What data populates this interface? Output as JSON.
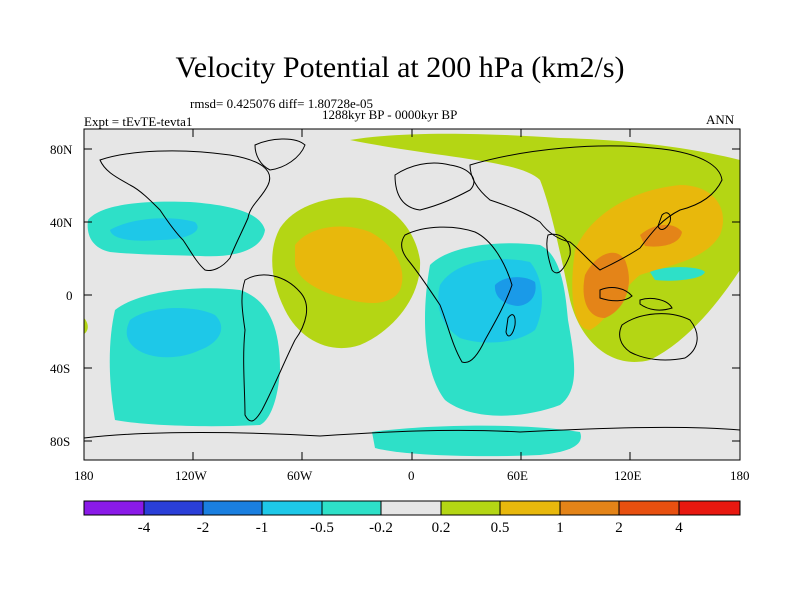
{
  "title": "Velocity Potential at 200 hPa (km2/s)",
  "stats": "rmsd= 0.425076 diff= 1.80728e-05",
  "period": "1288kyr BP - 0000kyr BP",
  "left_label": "Expt = tEvTE-tevta1",
  "right_label": "ANN",
  "map": {
    "lat_ticks": [
      "80N",
      "40N",
      "0",
      "40S",
      "80S"
    ],
    "lon_ticks": [
      "180",
      "120W",
      "60W",
      "0",
      "60E",
      "120E",
      "180"
    ]
  },
  "colorbar": {
    "labels": [
      "-4",
      "-2",
      "-1",
      "-0.5",
      "-0.2",
      "0.2",
      "0.5",
      "1",
      "2",
      "4"
    ],
    "colors": [
      "#8a1ae8",
      "#2a3fd8",
      "#1a7fe0",
      "#1ec8e8",
      "#2ee0c8",
      "#e6e6e6",
      "#b4d614",
      "#e8b80c",
      "#e48418",
      "#e85010",
      "#e81810"
    ]
  },
  "palette": {
    "land_outline": "#000000",
    "neutral": "#e6e6e6",
    "cyan": "#2ee0c8",
    "blue": "#1ec8e8",
    "deep_blue": "#1a9ae8",
    "green": "#b4d614",
    "yellow": "#e8b80c",
    "orange": "#e48418"
  }
}
